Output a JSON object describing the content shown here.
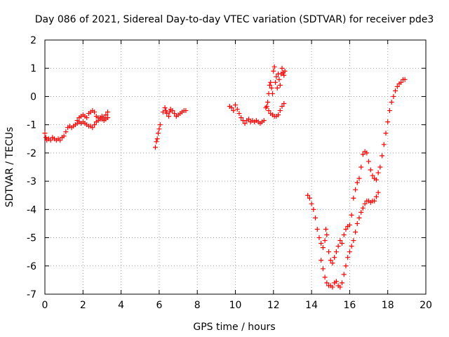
{
  "chart_data": {
    "type": "scatter",
    "title": "Day 086 of 2021, Sidereal Day-to-day VTEC variation (SDTVAR) for receiver pde3",
    "xlabel": "GPS time / hours",
    "ylabel": "SDTVAR / TECUs",
    "xlim": [
      0,
      20
    ],
    "ylim": [
      -7,
      2
    ],
    "x_ticks": [
      0,
      2,
      4,
      6,
      8,
      10,
      12,
      14,
      16,
      18,
      20
    ],
    "y_ticks": [
      -7,
      -6,
      -5,
      -4,
      -3,
      -2,
      -1,
      0,
      1,
      2
    ],
    "x_tick_labels": [
      "0",
      "2",
      "4",
      "6",
      "8",
      "10",
      "12",
      "14",
      "16",
      "18",
      "20"
    ],
    "y_tick_labels": [
      "-7",
      "-6",
      "-5",
      "-4",
      "-3",
      "-2",
      "-1",
      "0",
      "1",
      "2"
    ],
    "grid": true,
    "marker": "+",
    "marker_color": "#ff0000",
    "series": [
      {
        "points": [
          [
            0.0,
            -1.3
          ],
          [
            0.05,
            -1.45
          ],
          [
            0.1,
            -1.55
          ],
          [
            0.2,
            -1.5
          ],
          [
            0.3,
            -1.55
          ],
          [
            0.4,
            -1.45
          ],
          [
            0.5,
            -1.5
          ],
          [
            0.6,
            -1.55
          ],
          [
            0.7,
            -1.5
          ],
          [
            0.8,
            -1.55
          ],
          [
            0.9,
            -1.45
          ],
          [
            1.0,
            -1.4
          ],
          [
            1.1,
            -1.25
          ],
          [
            1.2,
            -1.1
          ],
          [
            1.3,
            -1.05
          ],
          [
            1.4,
            -1.1
          ],
          [
            1.5,
            -1.05
          ],
          [
            1.6,
            -1.0
          ],
          [
            1.7,
            -0.95
          ],
          [
            1.8,
            -0.75
          ],
          [
            1.9,
            -0.7
          ],
          [
            2.0,
            -0.65
          ],
          [
            2.1,
            -0.7
          ],
          [
            2.2,
            -0.75
          ],
          [
            2.3,
            -0.6
          ],
          [
            2.4,
            -0.55
          ],
          [
            2.5,
            -0.5
          ],
          [
            2.6,
            -0.55
          ],
          [
            2.7,
            -0.7
          ],
          [
            2.8,
            -0.75
          ],
          [
            2.9,
            -0.8
          ],
          [
            3.0,
            -0.7
          ],
          [
            3.1,
            -0.75
          ],
          [
            3.2,
            -0.65
          ],
          [
            3.3,
            -0.55
          ],
          [
            1.7,
            -0.85
          ],
          [
            1.8,
            -0.9
          ],
          [
            1.9,
            -0.95
          ],
          [
            2.0,
            -0.9
          ],
          [
            2.1,
            -0.95
          ],
          [
            2.2,
            -1.0
          ],
          [
            2.3,
            -1.05
          ],
          [
            2.4,
            -1.05
          ],
          [
            2.5,
            -1.1
          ],
          [
            2.6,
            -1.0
          ],
          [
            2.7,
            -0.9
          ],
          [
            2.8,
            -0.85
          ],
          [
            2.9,
            -0.75
          ],
          [
            3.0,
            -0.8
          ],
          [
            3.1,
            -0.85
          ],
          [
            3.2,
            -0.8
          ],
          [
            3.3,
            -0.75
          ]
        ]
      },
      {
        "points": [
          [
            5.8,
            -1.8
          ],
          [
            5.85,
            -1.6
          ],
          [
            5.9,
            -1.5
          ],
          [
            5.95,
            -1.3
          ],
          [
            6.0,
            -1.15
          ],
          [
            6.05,
            -1.0
          ],
          [
            6.2,
            -0.55
          ],
          [
            6.3,
            -0.4
          ],
          [
            6.35,
            -0.5
          ],
          [
            6.4,
            -0.6
          ],
          [
            6.5,
            -0.7
          ],
          [
            6.55,
            -0.55
          ],
          [
            6.6,
            -0.45
          ],
          [
            6.7,
            -0.5
          ],
          [
            6.8,
            -0.6
          ],
          [
            6.9,
            -0.7
          ],
          [
            7.0,
            -0.65
          ],
          [
            7.1,
            -0.6
          ],
          [
            7.2,
            -0.55
          ],
          [
            7.3,
            -0.5
          ],
          [
            7.4,
            -0.5
          ]
        ]
      },
      {
        "points": [
          [
            9.7,
            -0.35
          ],
          [
            9.8,
            -0.4
          ],
          [
            9.9,
            -0.5
          ],
          [
            10.0,
            -0.3
          ],
          [
            10.1,
            -0.45
          ],
          [
            10.2,
            -0.6
          ],
          [
            10.3,
            -0.75
          ],
          [
            10.4,
            -0.85
          ],
          [
            10.5,
            -0.95
          ],
          [
            10.6,
            -0.85
          ],
          [
            10.7,
            -0.8
          ],
          [
            10.8,
            -0.9
          ],
          [
            10.9,
            -0.85
          ],
          [
            11.0,
            -0.9
          ],
          [
            11.1,
            -0.85
          ],
          [
            11.2,
            -0.9
          ],
          [
            11.3,
            -0.95
          ],
          [
            11.4,
            -0.9
          ],
          [
            11.5,
            -0.85
          ],
          [
            11.6,
            -0.4
          ],
          [
            11.7,
            -0.2
          ],
          [
            11.75,
            0.1
          ],
          [
            11.8,
            0.4
          ],
          [
            11.85,
            0.5
          ],
          [
            11.9,
            0.3
          ],
          [
            11.95,
            0.1
          ],
          [
            12.0,
            0.9
          ],
          [
            12.05,
            1.05
          ],
          [
            12.1,
            0.5
          ],
          [
            12.15,
            0.7
          ],
          [
            12.2,
            0.3
          ],
          [
            12.25,
            0.8
          ],
          [
            12.3,
            0.6
          ],
          [
            12.35,
            0.4
          ],
          [
            12.4,
            0.8
          ],
          [
            12.45,
            1.0
          ],
          [
            12.5,
            0.85
          ],
          [
            12.55,
            0.75
          ],
          [
            12.6,
            0.9
          ],
          [
            11.65,
            -0.35
          ],
          [
            11.75,
            -0.5
          ],
          [
            11.85,
            -0.6
          ],
          [
            11.95,
            -0.65
          ],
          [
            12.05,
            -0.7
          ],
          [
            12.15,
            -0.7
          ],
          [
            12.25,
            -0.65
          ],
          [
            12.35,
            -0.5
          ],
          [
            12.45,
            -0.35
          ],
          [
            12.55,
            -0.25
          ]
        ]
      },
      {
        "points": [
          [
            13.8,
            -3.5
          ],
          [
            13.9,
            -3.6
          ],
          [
            14.0,
            -3.8
          ],
          [
            14.1,
            -4.0
          ],
          [
            14.2,
            -4.3
          ],
          [
            14.3,
            -4.7
          ],
          [
            14.4,
            -5.0
          ],
          [
            14.5,
            -5.2
          ],
          [
            14.6,
            -5.35
          ],
          [
            14.7,
            -5.1
          ],
          [
            14.75,
            -4.7
          ],
          [
            14.8,
            -4.9
          ],
          [
            14.9,
            -5.5
          ],
          [
            15.0,
            -5.8
          ],
          [
            15.1,
            -5.9
          ],
          [
            15.2,
            -5.7
          ],
          [
            15.3,
            -5.5
          ],
          [
            15.4,
            -5.3
          ],
          [
            15.5,
            -5.1
          ],
          [
            15.6,
            -5.2
          ],
          [
            15.7,
            -4.9
          ],
          [
            15.8,
            -4.7
          ],
          [
            15.9,
            -4.6
          ],
          [
            16.0,
            -4.55
          ],
          [
            16.1,
            -4.2
          ],
          [
            16.2,
            -3.6
          ],
          [
            16.3,
            -3.3
          ],
          [
            16.4,
            -3.05
          ],
          [
            16.5,
            -2.9
          ],
          [
            16.6,
            -2.5
          ],
          [
            16.7,
            -2.05
          ],
          [
            16.8,
            -1.95
          ],
          [
            16.9,
            -2.0
          ],
          [
            17.0,
            -2.3
          ],
          [
            17.1,
            -2.6
          ],
          [
            17.2,
            -2.8
          ],
          [
            17.3,
            -2.9
          ],
          [
            17.4,
            -2.95
          ],
          [
            17.5,
            -2.7
          ],
          [
            17.6,
            -2.5
          ],
          [
            17.7,
            -2.1
          ],
          [
            17.8,
            -1.7
          ],
          [
            17.9,
            -1.3
          ],
          [
            18.0,
            -0.9
          ],
          [
            18.1,
            -0.5
          ],
          [
            18.2,
            -0.2
          ],
          [
            18.3,
            0.0
          ],
          [
            18.4,
            0.2
          ],
          [
            18.5,
            0.35
          ],
          [
            18.6,
            0.45
          ],
          [
            18.7,
            0.5
          ],
          [
            18.8,
            0.6
          ],
          [
            18.9,
            0.6
          ],
          [
            14.5,
            -5.8
          ],
          [
            14.6,
            -6.1
          ],
          [
            14.7,
            -6.4
          ],
          [
            14.8,
            -6.6
          ],
          [
            14.9,
            -6.7
          ],
          [
            15.0,
            -6.7
          ],
          [
            15.1,
            -6.75
          ],
          [
            15.2,
            -6.6
          ],
          [
            15.3,
            -6.55
          ],
          [
            15.4,
            -6.7
          ],
          [
            15.5,
            -6.75
          ],
          [
            15.6,
            -6.6
          ],
          [
            15.7,
            -6.3
          ],
          [
            15.8,
            -6.0
          ],
          [
            15.9,
            -5.7
          ],
          [
            16.0,
            -5.5
          ],
          [
            16.1,
            -5.3
          ],
          [
            16.2,
            -5.1
          ],
          [
            16.3,
            -4.8
          ],
          [
            16.4,
            -4.5
          ],
          [
            16.5,
            -4.3
          ],
          [
            16.6,
            -4.1
          ],
          [
            16.7,
            -3.95
          ],
          [
            16.8,
            -3.8
          ],
          [
            16.9,
            -3.7
          ],
          [
            17.0,
            -3.7
          ],
          [
            17.1,
            -3.75
          ],
          [
            17.2,
            -3.7
          ],
          [
            17.3,
            -3.7
          ],
          [
            17.4,
            -3.55
          ],
          [
            17.5,
            -3.4
          ]
        ]
      }
    ]
  }
}
